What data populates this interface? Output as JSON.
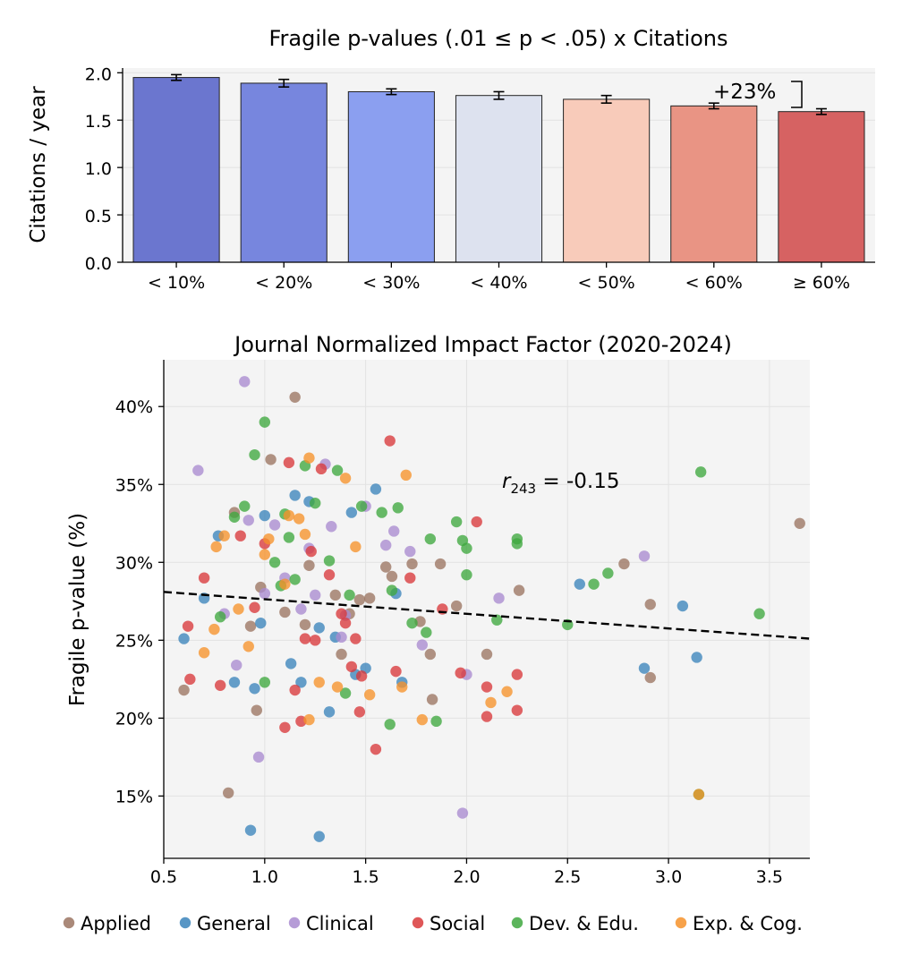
{
  "chart_data": [
    {
      "type": "bar",
      "title": "Fragile p-values (.01 ≤ p < .05) x Citations",
      "xlabel": "",
      "ylabel": "Citations / year",
      "categories": [
        "< 10%",
        "< 20%",
        "< 30%",
        "< 40%",
        "< 50%",
        "< 60%",
        "≥ 60%"
      ],
      "values": [
        1.95,
        1.89,
        1.8,
        1.76,
        1.72,
        1.65,
        1.59
      ],
      "errors": [
        0.03,
        0.04,
        0.03,
        0.04,
        0.04,
        0.03,
        0.03
      ],
      "bar_colors": [
        "#6b76cf",
        "#7786de",
        "#8b9ff0",
        "#dde2ef",
        "#f8cbba",
        "#e99484",
        "#d66262"
      ],
      "ylim": [
        0,
        2.05
      ],
      "yticks": [
        "0.0",
        "0.5",
        "1.0",
        "1.5",
        "2.0"
      ],
      "annotation": "+23%",
      "grid": true
    },
    {
      "type": "scatter",
      "title": "Journal Normalized Impact Factor (2020-2024)",
      "xlabel": "",
      "ylabel": "Fragile p-value (%)",
      "xlim": [
        0.5,
        3.7
      ],
      "ylim": [
        11,
        43
      ],
      "xticks": [
        "0.5",
        "1.0",
        "1.5",
        "2.0",
        "2.5",
        "3.0",
        "3.5"
      ],
      "yticks": [
        "15%",
        "20%",
        "25%",
        "30%",
        "35%",
        "40%"
      ],
      "annotation_r": "r",
      "annotation_sub": "243",
      "annotation_val": " = -0.15",
      "trend_line": {
        "x": [
          0.5,
          3.7
        ],
        "y": [
          28.1,
          25.1
        ]
      },
      "legend": [
        {
          "name": "Applied",
          "color": "#9b7461"
        },
        {
          "name": "General",
          "color": "#3b84bb"
        },
        {
          "name": "Clinical",
          "color": "#a98bd0"
        },
        {
          "name": "Social",
          "color": "#d9393b"
        },
        {
          "name": "Dev. & Edu.",
          "color": "#3fa83f"
        },
        {
          "name": "Exp. & Cog.",
          "color": "#f6922a"
        }
      ],
      "series": [
        {
          "name": "Applied",
          "points": [
            [
              0.6,
              21.8
            ],
            [
              0.82,
              15.2
            ],
            [
              0.85,
              33.2
            ],
            [
              0.93,
              25.9
            ],
            [
              0.96,
              20.5
            ],
            [
              0.98,
              28.4
            ],
            [
              1.03,
              36.6
            ],
            [
              1.1,
              26.8
            ],
            [
              1.15,
              40.6
            ],
            [
              1.2,
              26.0
            ],
            [
              1.22,
              29.8
            ],
            [
              1.35,
              27.9
            ],
            [
              1.38,
              24.1
            ],
            [
              1.42,
              26.7
            ],
            [
              1.47,
              27.6
            ],
            [
              1.52,
              27.7
            ],
            [
              1.6,
              29.7
            ],
            [
              1.63,
              29.1
            ],
            [
              1.73,
              29.9
            ],
            [
              1.77,
              26.2
            ],
            [
              1.82,
              24.1
            ],
            [
              1.83,
              21.2
            ],
            [
              1.87,
              29.9
            ],
            [
              1.95,
              27.2
            ],
            [
              2.1,
              24.1
            ],
            [
              2.26,
              28.2
            ],
            [
              2.78,
              29.9
            ],
            [
              2.91,
              27.3
            ],
            [
              2.91,
              22.6
            ],
            [
              3.65,
              32.5
            ]
          ]
        },
        {
          "name": "General",
          "points": [
            [
              0.6,
              25.1
            ],
            [
              0.7,
              27.7
            ],
            [
              0.77,
              31.7
            ],
            [
              0.85,
              22.3
            ],
            [
              0.93,
              12.8
            ],
            [
              0.95,
              21.9
            ],
            [
              0.98,
              26.1
            ],
            [
              1.0,
              33.0
            ],
            [
              1.13,
              23.5
            ],
            [
              1.15,
              34.3
            ],
            [
              1.18,
              22.3
            ],
            [
              1.22,
              33.9
            ],
            [
              1.27,
              12.4
            ],
            [
              1.27,
              25.8
            ],
            [
              1.32,
              20.4
            ],
            [
              1.35,
              25.2
            ],
            [
              1.43,
              33.2
            ],
            [
              1.45,
              22.8
            ],
            [
              1.5,
              23.2
            ],
            [
              1.55,
              34.7
            ],
            [
              1.65,
              28.0
            ],
            [
              1.68,
              22.3
            ],
            [
              2.56,
              28.6
            ],
            [
              2.88,
              23.2
            ],
            [
              3.07,
              27.2
            ],
            [
              3.14,
              23.9
            ]
          ]
        },
        {
          "name": "Clinical",
          "points": [
            [
              0.67,
              35.9
            ],
            [
              0.8,
              26.7
            ],
            [
              0.86,
              23.4
            ],
            [
              0.9,
              41.6
            ],
            [
              0.92,
              32.7
            ],
            [
              0.97,
              17.5
            ],
            [
              1.0,
              28.0
            ],
            [
              1.05,
              32.4
            ],
            [
              1.1,
              29.0
            ],
            [
              1.18,
              27.0
            ],
            [
              1.22,
              30.9
            ],
            [
              1.25,
              27.9
            ],
            [
              1.3,
              36.3
            ],
            [
              1.33,
              32.3
            ],
            [
              1.38,
              25.2
            ],
            [
              1.4,
              26.6
            ],
            [
              1.5,
              33.6
            ],
            [
              1.6,
              31.1
            ],
            [
              1.64,
              32.0
            ],
            [
              1.72,
              30.7
            ],
            [
              1.78,
              24.7
            ],
            [
              1.98,
              13.9
            ],
            [
              2.0,
              22.8
            ],
            [
              2.16,
              27.7
            ],
            [
              2.88,
              30.4
            ]
          ]
        },
        {
          "name": "Social",
          "points": [
            [
              0.62,
              25.9
            ],
            [
              0.63,
              22.5
            ],
            [
              0.7,
              29.0
            ],
            [
              0.78,
              22.1
            ],
            [
              0.88,
              31.7
            ],
            [
              0.95,
              27.1
            ],
            [
              1.0,
              31.2
            ],
            [
              1.12,
              36.4
            ],
            [
              1.15,
              21.8
            ],
            [
              1.18,
              19.8
            ],
            [
              1.2,
              25.1
            ],
            [
              1.23,
              30.7
            ],
            [
              1.28,
              36.0
            ],
            [
              1.32,
              29.2
            ],
            [
              1.38,
              26.7
            ],
            [
              1.4,
              26.1
            ],
            [
              1.43,
              23.3
            ],
            [
              1.45,
              25.1
            ],
            [
              1.47,
              20.4
            ],
            [
              1.48,
              22.7
            ],
            [
              1.55,
              18.0
            ],
            [
              1.62,
              37.8
            ],
            [
              1.65,
              23.0
            ],
            [
              1.72,
              29.0
            ],
            [
              1.88,
              27.0
            ],
            [
              1.97,
              22.9
            ],
            [
              2.05,
              32.6
            ],
            [
              2.1,
              22.0
            ],
            [
              2.1,
              20.1
            ],
            [
              2.25,
              22.8
            ],
            [
              2.25,
              20.5
            ],
            [
              1.1,
              19.4
            ],
            [
              1.25,
              25.0
            ]
          ]
        },
        {
          "name": "Dev. & Edu.",
          "points": [
            [
              0.78,
              26.5
            ],
            [
              0.85,
              32.9
            ],
            [
              0.9,
              33.6
            ],
            [
              0.95,
              36.9
            ],
            [
              1.0,
              39.0
            ],
            [
              1.05,
              30.0
            ],
            [
              1.08,
              28.5
            ],
            [
              1.1,
              33.1
            ],
            [
              1.12,
              31.6
            ],
            [
              1.15,
              28.9
            ],
            [
              1.2,
              36.2
            ],
            [
              1.25,
              33.8
            ],
            [
              1.32,
              30.1
            ],
            [
              1.36,
              35.9
            ],
            [
              1.42,
              27.9
            ],
            [
              1.48,
              33.6
            ],
            [
              1.58,
              33.2
            ],
            [
              1.63,
              28.2
            ],
            [
              1.66,
              33.5
            ],
            [
              1.73,
              26.1
            ],
            [
              1.8,
              25.5
            ],
            [
              1.82,
              31.5
            ],
            [
              1.85,
              19.8
            ],
            [
              1.95,
              32.6
            ],
            [
              1.98,
              31.4
            ],
            [
              2.0,
              29.2
            ],
            [
              2.0,
              30.9
            ],
            [
              2.15,
              26.3
            ],
            [
              2.25,
              31.5
            ],
            [
              2.25,
              31.2
            ],
            [
              2.5,
              26.0
            ],
            [
              2.63,
              28.6
            ],
            [
              2.7,
              29.3
            ],
            [
              3.16,
              35.8
            ],
            [
              3.45,
              26.7
            ],
            [
              3.15,
              15.1
            ],
            [
              1.62,
              19.6
            ],
            [
              1.0,
              22.3
            ],
            [
              1.4,
              21.6
            ]
          ]
        },
        {
          "name": "Exp. & Cog.",
          "points": [
            [
              0.7,
              24.2
            ],
            [
              0.75,
              25.7
            ],
            [
              0.76,
              31.0
            ],
            [
              0.8,
              31.7
            ],
            [
              0.87,
              27.0
            ],
            [
              0.92,
              24.6
            ],
            [
              1.0,
              30.5
            ],
            [
              1.02,
              31.5
            ],
            [
              1.1,
              28.6
            ],
            [
              1.12,
              33.0
            ],
            [
              1.17,
              32.8
            ],
            [
              1.2,
              31.8
            ],
            [
              1.22,
              19.9
            ],
            [
              1.22,
              36.7
            ],
            [
              1.27,
              22.3
            ],
            [
              1.4,
              35.4
            ],
            [
              1.45,
              31.0
            ],
            [
              1.52,
              21.5
            ],
            [
              1.68,
              22.0
            ],
            [
              1.7,
              35.6
            ],
            [
              1.78,
              19.9
            ],
            [
              2.12,
              21.0
            ],
            [
              2.2,
              21.7
            ],
            [
              3.15,
              15.1
            ],
            [
              1.36,
              22.0
            ]
          ]
        }
      ],
      "grid": true
    }
  ]
}
